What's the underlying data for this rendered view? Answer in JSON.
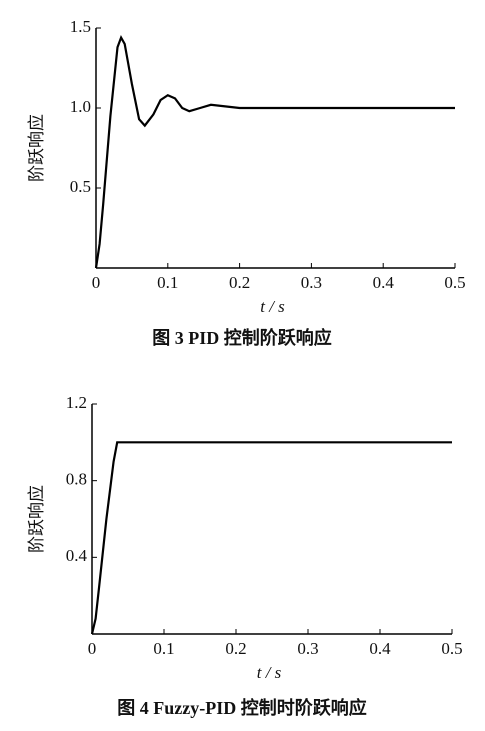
{
  "chart_data": [
    {
      "type": "line",
      "title": "图 3   PID 控制阶跃响应",
      "xlabel": "t / s",
      "ylabel": "阶跃响应",
      "color": "#000000",
      "x": [
        0,
        0.005,
        0.01,
        0.02,
        0.03,
        0.035,
        0.04,
        0.05,
        0.06,
        0.068,
        0.08,
        0.09,
        0.1,
        0.11,
        0.12,
        0.13,
        0.145,
        0.16,
        0.18,
        0.2,
        0.25,
        0.3,
        0.4,
        0.5
      ],
      "values": [
        0,
        0.15,
        0.4,
        0.95,
        1.38,
        1.44,
        1.4,
        1.15,
        0.93,
        0.89,
        0.96,
        1.05,
        1.08,
        1.06,
        1.0,
        0.98,
        1.0,
        1.02,
        1.01,
        1.0,
        1.0,
        1.0,
        1.0,
        1.0
      ],
      "xlim": [
        0,
        0.5
      ],
      "ylim": [
        0,
        1.5
      ],
      "xticks": [
        0,
        0.1,
        0.2,
        0.3,
        0.4,
        0.5
      ],
      "yticks": [
        0.5,
        {
          "value": 1,
          "label": "1.0"
        },
        1.5
      ]
    },
    {
      "type": "line",
      "title": "图 4   Fuzzy-PID 控制时阶跃响应",
      "xlabel": "t / s",
      "ylabel": "阶跃响应",
      "color": "#000000",
      "x": [
        0,
        0.005,
        0.01,
        0.02,
        0.03,
        0.035,
        0.5
      ],
      "values": [
        0,
        0.08,
        0.25,
        0.6,
        0.9,
        1.0,
        1.0
      ],
      "xlim": [
        0,
        0.5
      ],
      "ylim": [
        0,
        1.2
      ],
      "xticks": [
        0,
        0.1,
        0.2,
        0.3,
        0.4,
        0.5
      ],
      "yticks": [
        0.4,
        0.8,
        1.2
      ]
    }
  ]
}
